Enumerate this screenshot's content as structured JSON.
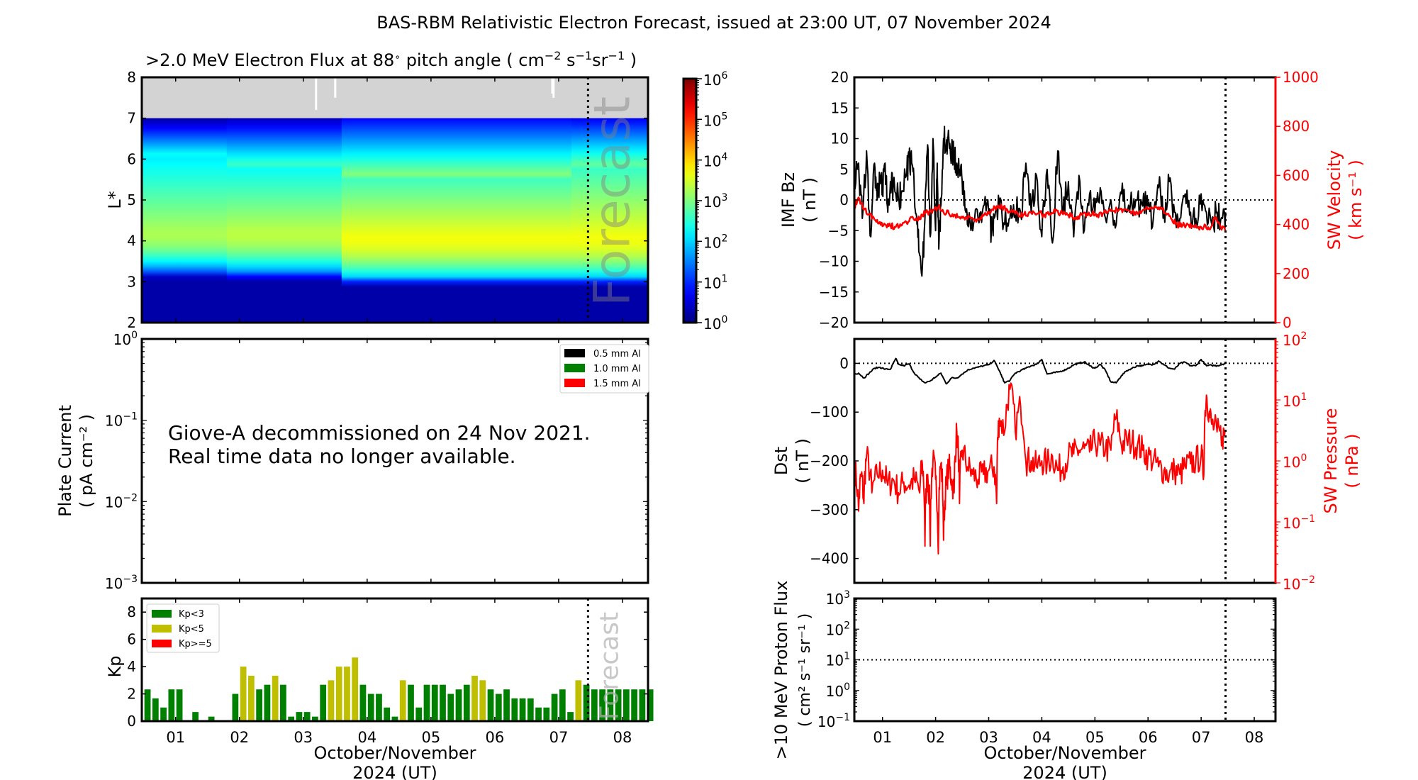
{
  "title": "BAS-RBM Relativistic Electron Forecast, issued at 23:00 UT, 07 November 2024",
  "chart_data": [
    {
      "id": "electron_flux",
      "type": "heatmap",
      "title": ">2.0 MeV Electron Flux at 88° pitch angle ( cm⁻² s⁻¹ sr⁻¹ )",
      "title_parts": {
        "main": ">2.0 MeV Electron Flux at 88",
        "deg": "∘",
        "mid": " pitch angle ( cm",
        "e1": "−2",
        "s": " s",
        "e2": "−1",
        "sr": "sr",
        "e3": "−1",
        "end": " )"
      },
      "ylabel": "L*",
      "ylim": [
        2,
        8
      ],
      "yticks": [
        "2",
        "3",
        "4",
        "5",
        "6",
        "7",
        "8"
      ],
      "xlim": [
        0.47,
        8.4
      ],
      "no_data_above_L": 7.0,
      "no_data_color": "#d3d3d3",
      "forecast_start": 7.46,
      "forecast_label": "Forecast",
      "colorbar": {
        "min_exp": 0,
        "max_exp": 6,
        "ticks": [
          "0",
          "1",
          "2",
          "3",
          "4",
          "5",
          "6"
        ],
        "scale": "log",
        "colormap": "jet"
      },
      "segments": [
        {
          "x0": 0.47,
          "x1": 1.8,
          "inner_edge": 3.3,
          "peak_L": 4.2,
          "peak_log": 3.3,
          "outer_edge": 6.0
        },
        {
          "x0": 1.8,
          "x1": 3.6,
          "inner_edge": 3.25,
          "peak_L": 4.2,
          "peak_log": 3.4,
          "outer_edge": 5.8
        },
        {
          "x0": 3.6,
          "x1": 7.2,
          "inner_edge": 3.1,
          "peak_L": 4.1,
          "peak_log": 3.75,
          "outer_edge": 5.55
        },
        {
          "x0": 7.2,
          "x1": 8.4,
          "inner_edge": 3.1,
          "peak_L": 4.1,
          "peak_log": 3.75,
          "outer_edge": 5.75
        }
      ]
    },
    {
      "id": "plate_current",
      "type": "line",
      "ylabel": "Plate Current",
      "ylabel_units": "( pA cm⁻² )",
      "yscale": "log",
      "ylim": [
        0.001,
        1
      ],
      "yticks_exp": [
        "-3",
        "-2",
        "-1",
        "0"
      ],
      "legend": [
        {
          "label": "0.5 mm Al",
          "color": "#000000"
        },
        {
          "label": "1.0 mm Al",
          "color": "#008000"
        },
        {
          "label": "1.5 mm Al",
          "color": "#ff0000"
        }
      ],
      "legend_position": "top-right",
      "annotation": [
        "Giove-A decommissioned on 24 Nov 2021.",
        "Real time data no longer available."
      ],
      "series": []
    },
    {
      "id": "kp",
      "type": "bar",
      "ylabel": "Kp",
      "ylim": [
        0,
        9
      ],
      "yticks": [
        "0",
        "2",
        "4",
        "6",
        "8"
      ],
      "xlim": [
        0.47,
        8.4
      ],
      "bar_width_days": 0.125,
      "x_start": 0.5,
      "forecast_start": 7.46,
      "forecast_label": "Forecast",
      "legend": [
        {
          "label": "Kp<3",
          "color": "#008000"
        },
        {
          "label": "Kp<5",
          "color": "#bfbf00"
        },
        {
          "label": "Kp>=5",
          "color": "#ff0000"
        }
      ],
      "legend_position": "top-left",
      "values": [
        2.33,
        1.67,
        1,
        2.33,
        2.33,
        0,
        0.67,
        0,
        0.33,
        0,
        0,
        2,
        4,
        3.33,
        2.33,
        2.67,
        3.33,
        2.67,
        0.33,
        0.67,
        0.67,
        0.33,
        2.67,
        3,
        4,
        4,
        4.67,
        2.67,
        2,
        2,
        1,
        0.33,
        3,
        2.67,
        1,
        2.67,
        2.67,
        2.67,
        2,
        2.33,
        2.67,
        3.33,
        3,
        2.33,
        2,
        2.33,
        1.67,
        1.67,
        1.67,
        1,
        1,
        2,
        2.33,
        0.67,
        3,
        2.67,
        2.33,
        2.33,
        2.33,
        2.33,
        2.33,
        2.33,
        2.33,
        2.33
      ]
    },
    {
      "id": "imf_bz_sw_velocity",
      "type": "line",
      "ylabel": "IMF Bz",
      "ylabel_units": "( nT )",
      "ylim": [
        -20,
        20
      ],
      "yticks": [
        "-20",
        "-15",
        "-10",
        "-5",
        "0",
        "5",
        "10",
        "15",
        "20"
      ],
      "y2label": "SW Velocity",
      "y2label_units": "( km s⁻¹ )",
      "y2lim": [
        0,
        1000
      ],
      "y2ticks": [
        "0",
        "200",
        "400",
        "600",
        "800",
        "1000"
      ],
      "xlim": [
        0.47,
        8.4
      ],
      "forecast_start": 7.46,
      "series": [
        {
          "name": "IMF Bz",
          "color": "#000000",
          "axis": "left",
          "x": [
            0.47,
            0.55,
            0.62,
            0.7,
            0.78,
            0.85,
            0.9,
            0.95,
            1.0,
            1.05,
            1.1,
            1.15,
            1.2,
            1.3,
            1.35,
            1.45,
            1.5,
            1.55,
            1.6,
            1.65,
            1.7,
            1.75,
            1.8,
            1.85,
            1.9,
            1.95,
            2.0,
            2.03,
            2.06,
            2.1,
            2.15,
            2.2,
            2.25,
            2.3,
            2.35,
            2.4,
            2.45,
            2.5,
            2.55,
            2.6,
            2.7,
            2.8,
            2.9,
            3.0,
            3.05,
            3.1,
            3.2,
            3.3,
            3.4,
            3.5,
            3.6,
            3.7,
            3.8,
            3.9,
            4.0,
            4.1,
            4.2,
            4.3,
            4.4,
            4.5,
            4.6,
            4.7,
            4.8,
            4.9,
            5.0,
            5.1,
            5.2,
            5.3,
            5.4,
            5.5,
            5.6,
            5.7,
            5.8,
            5.9,
            6.0,
            6.1,
            6.2,
            6.3,
            6.4,
            6.5,
            6.6,
            6.7,
            6.8,
            6.9,
            7.0,
            7.1,
            7.2,
            7.3,
            7.4,
            7.46
          ],
          "y": [
            4,
            6,
            -3,
            8,
            -6,
            6,
            0,
            4,
            1,
            6,
            -2,
            3,
            2,
            0,
            1,
            4,
            7,
            6,
            1,
            -4,
            -9,
            -11,
            -3,
            9,
            -6,
            10,
            -5,
            6,
            -8,
            -1,
            10,
            9,
            10,
            8,
            7,
            6,
            5,
            3,
            -1,
            -4,
            -5,
            -3,
            -1,
            -2,
            -5,
            -3,
            -1,
            -4,
            -3,
            -2,
            -2,
            6,
            -2,
            4,
            -6,
            5,
            -7,
            8,
            -2,
            3,
            -6,
            4,
            -5,
            1,
            -2,
            2,
            -3,
            0,
            -4,
            1,
            -2,
            -1,
            0,
            -1,
            -1,
            -3,
            2,
            -2,
            3,
            -2,
            -3,
            1,
            -2,
            -3,
            1,
            -2,
            -4,
            -2,
            -3,
            -2
          ]
        },
        {
          "name": "SW Velocity",
          "color": "#ff0000",
          "axis": "right",
          "x": [
            0.47,
            0.55,
            0.65,
            0.75,
            0.85,
            0.95,
            1.05,
            1.15,
            1.25,
            1.35,
            1.45,
            1.55,
            1.65,
            1.75,
            1.85,
            1.95,
            2.05,
            2.15,
            2.25,
            2.35,
            2.45,
            2.55,
            2.65,
            2.75,
            2.85,
            2.95,
            3.05,
            3.15,
            3.25,
            3.35,
            3.45,
            3.55,
            3.65,
            3.75,
            3.85,
            3.95,
            4.05,
            4.15,
            4.25,
            4.35,
            4.45,
            4.55,
            4.65,
            4.75,
            4.85,
            4.95,
            5.05,
            5.15,
            5.25,
            5.35,
            5.45,
            5.55,
            5.65,
            5.75,
            5.85,
            5.95,
            6.05,
            6.15,
            6.25,
            6.35,
            6.45,
            6.55,
            6.65,
            6.75,
            6.85,
            6.95,
            7.05,
            7.15,
            7.25,
            7.35,
            7.46
          ],
          "y": [
            470,
            510,
            460,
            440,
            420,
            410,
            400,
            395,
            390,
            395,
            410,
            430,
            420,
            440,
            450,
            460,
            470,
            450,
            445,
            440,
            430,
            420,
            430,
            420,
            430,
            440,
            460,
            475,
            470,
            460,
            450,
            445,
            440,
            445,
            450,
            445,
            440,
            445,
            450,
            445,
            440,
            435,
            430,
            440,
            445,
            445,
            440,
            445,
            450,
            455,
            460,
            460,
            455,
            450,
            455,
            460,
            465,
            470,
            465,
            440,
            420,
            400,
            395,
            400,
            395,
            390,
            390,
            380,
            430,
            400,
            370
          ]
        }
      ]
    },
    {
      "id": "dst_sw_pressure",
      "type": "line",
      "ylabel": "Dst",
      "ylabel_units": "( nT )",
      "ylim": [
        -450,
        50
      ],
      "yticks": [
        "-400",
        "-300",
        "-200",
        "-100",
        "0"
      ],
      "y2label": "SW Pressure",
      "y2label_units": "( nPa )",
      "y2scale": "log",
      "y2lim": [
        0.01,
        100
      ],
      "y2ticks_exp": [
        "-2",
        "-1",
        "0",
        "1",
        "2"
      ],
      "xlim": [
        0.47,
        8.4
      ],
      "forecast_start": 7.46,
      "series": [
        {
          "name": "Dst",
          "color": "#000000",
          "axis": "left",
          "x": [
            0.47,
            0.55,
            0.65,
            0.75,
            0.85,
            0.95,
            1.05,
            1.15,
            1.25,
            1.3,
            1.4,
            1.5,
            1.6,
            1.7,
            1.8,
            1.9,
            2.0,
            2.1,
            2.2,
            2.3,
            2.4,
            2.5,
            2.6,
            2.7,
            2.8,
            2.9,
            3.0,
            3.1,
            3.2,
            3.25,
            3.3,
            3.4,
            3.5,
            3.6,
            3.7,
            3.8,
            3.9,
            4.0,
            4.1,
            4.2,
            4.3,
            4.4,
            4.5,
            4.6,
            4.7,
            4.8,
            4.9,
            5.0,
            5.1,
            5.2,
            5.3,
            5.4,
            5.5,
            5.6,
            5.7,
            5.8,
            5.9,
            6.0,
            6.1,
            6.2,
            6.3,
            6.4,
            6.5,
            6.6,
            6.7,
            6.8,
            6.9,
            7.0,
            7.1,
            7.2,
            7.3,
            7.4,
            7.46
          ],
          "y": [
            -22,
            -20,
            -30,
            -20,
            -10,
            -8,
            -12,
            -12,
            10,
            -2,
            -5,
            -1,
            -20,
            -32,
            -40,
            -36,
            -28,
            -20,
            -42,
            -30,
            -30,
            -22,
            -14,
            -10,
            -8,
            -5,
            -3,
            6,
            -15,
            -28,
            -40,
            -35,
            -20,
            -15,
            -10,
            -5,
            -2,
            8,
            -22,
            -20,
            -18,
            -15,
            -10,
            -3,
            0,
            3,
            -5,
            -10,
            -2,
            -15,
            -38,
            -40,
            -25,
            -15,
            -10,
            -5,
            -5,
            -2,
            -2,
            5,
            -3,
            -10,
            -12,
            0,
            2,
            -5,
            -5,
            8,
            -5,
            -4,
            -5,
            -2,
            0
          ]
        },
        {
          "name": "SW Pressure",
          "color": "#ff0000",
          "axis": "right",
          "x": [
            0.47,
            0.55,
            0.6,
            0.65,
            0.7,
            0.8,
            0.9,
            1.0,
            1.1,
            1.2,
            1.3,
            1.4,
            1.5,
            1.6,
            1.7,
            1.75,
            1.8,
            1.85,
            1.9,
            1.95,
            2.0,
            2.05,
            2.1,
            2.15,
            2.2,
            2.25,
            2.3,
            2.35,
            2.4,
            2.45,
            2.5,
            2.6,
            2.7,
            2.8,
            2.9,
            3.0,
            3.1,
            3.15,
            3.2,
            3.3,
            3.4,
            3.5,
            3.6,
            3.7,
            3.8,
            3.9,
            4.0,
            4.1,
            4.2,
            4.3,
            4.4,
            4.5,
            4.6,
            4.7,
            4.8,
            4.9,
            5.0,
            5.1,
            5.2,
            5.3,
            5.4,
            5.5,
            5.6,
            5.7,
            5.8,
            5.9,
            6.0,
            6.1,
            6.2,
            6.3,
            6.4,
            6.5,
            6.6,
            6.7,
            6.8,
            6.9,
            7.0,
            7.05,
            7.1,
            7.15,
            7.2,
            7.3,
            7.4,
            7.46
          ],
          "y": [
            0.8,
            0.15,
            0.6,
            0.2,
            1.2,
            0.3,
            0.6,
            0.7,
            0.4,
            0.5,
            0.3,
            0.45,
            0.4,
            0.5,
            0.3,
            0.9,
            0.04,
            0.6,
            0.04,
            1.0,
            0.5,
            0.03,
            0.9,
            0.05,
            0.4,
            0.8,
            0.5,
            0.3,
            3,
            0.2,
            1.5,
            0.8,
            0.6,
            0.5,
            0.6,
            0.7,
            0.8,
            0.2,
            5,
            3,
            15,
            3,
            8,
            1,
            1,
            0.8,
            1,
            0.9,
            1.2,
            0.7,
            0.8,
            1.2,
            1.3,
            1.5,
            1.6,
            1.4,
            2,
            1.8,
            1.6,
            1.5,
            5,
            1.8,
            2.2,
            2,
            1.8,
            1.5,
            1.2,
            1.0,
            0.8,
            0.7,
            0.6,
            0.7,
            0.6,
            0.8,
            0.9,
            1.0,
            1.2,
            0.6,
            12,
            6,
            4,
            3,
            2.5,
            3
          ]
        }
      ]
    },
    {
      "id": "proton_flux",
      "type": "line",
      "ylabel": ">10 MeV Proton Flux",
      "ylabel_units": "( cm² s⁻¹ sr⁻¹ )",
      "yscale": "log",
      "ylim": [
        0.1,
        1000
      ],
      "yticks_exp": [
        "-1",
        "0",
        "1",
        "2",
        "3"
      ],
      "threshold": 10,
      "xlim": [
        0.47,
        8.4
      ],
      "forecast_start": 7.46,
      "series": []
    }
  ],
  "x_axis": {
    "tick_labels": [
      "01",
      "02",
      "03",
      "04",
      "05",
      "06",
      "07",
      "08"
    ],
    "tick_values": [
      1,
      2,
      3,
      4,
      5,
      6,
      7,
      8
    ],
    "xlabel_line1": "October/November",
    "xlabel_line2": "2024 (UT)"
  }
}
